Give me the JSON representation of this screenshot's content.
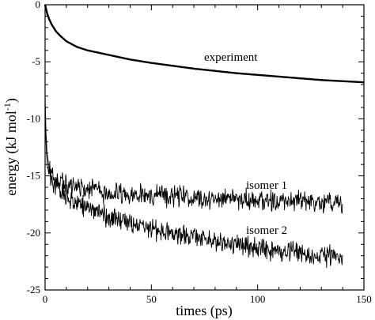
{
  "chart_data": {
    "type": "line",
    "xlabel": "times (ps)",
    "ylabel_main": "energy (kJ mol",
    "ylabel_sup": "-1",
    "ylabel_close": ")",
    "xlim": [
      0,
      150
    ],
    "ylim": [
      -25,
      0
    ],
    "xticks": [
      0,
      50,
      100,
      150
    ],
    "yticks": [
      0,
      -5,
      -10,
      -15,
      -20,
      -25
    ],
    "grid": false,
    "annotations": [
      "experiment",
      "isomer 1",
      "isomer 2"
    ],
    "series": [
      {
        "name": "experiment",
        "x": [
          0,
          1,
          2,
          3,
          5,
          7,
          10,
          15,
          20,
          30,
          40,
          50,
          60,
          70,
          80,
          90,
          100,
          110,
          120,
          130,
          140,
          150
        ],
        "y": [
          0,
          -0.8,
          -1.3,
          -1.7,
          -2.3,
          -2.7,
          -3.2,
          -3.7,
          -4.0,
          -4.4,
          -4.8,
          -5.1,
          -5.35,
          -5.6,
          -5.8,
          -6.0,
          -6.15,
          -6.3,
          -6.45,
          -6.6,
          -6.7,
          -6.8
        ]
      },
      {
        "name": "isomer 1",
        "x": [
          0,
          0.5,
          1,
          2,
          3,
          5,
          8,
          10,
          15,
          20,
          30,
          40,
          50,
          60,
          70,
          80,
          90,
          100,
          110,
          120,
          130,
          140
        ],
        "y": [
          -8,
          -11.5,
          -13.2,
          -14.3,
          -14.8,
          -15.3,
          -15.7,
          -15.8,
          -16.0,
          -16.2,
          -16.5,
          -16.6,
          -16.7,
          -16.8,
          -16.9,
          -17.0,
          -17.1,
          -17.1,
          -17.2,
          -17.2,
          -17.3,
          -17.3
        ]
      },
      {
        "name": "isomer 2",
        "x": [
          0,
          0.5,
          1,
          2,
          3,
          5,
          8,
          10,
          15,
          20,
          30,
          40,
          50,
          60,
          70,
          80,
          90,
          100,
          110,
          120,
          130,
          140
        ],
        "y": [
          -9,
          -12.5,
          -14.0,
          -14.9,
          -15.4,
          -16.0,
          -16.5,
          -16.8,
          -17.4,
          -17.9,
          -18.6,
          -19.2,
          -19.7,
          -20.1,
          -20.4,
          -20.7,
          -21.0,
          -21.3,
          -21.6,
          -21.8,
          -22.0,
          -22.2
        ]
      }
    ]
  }
}
